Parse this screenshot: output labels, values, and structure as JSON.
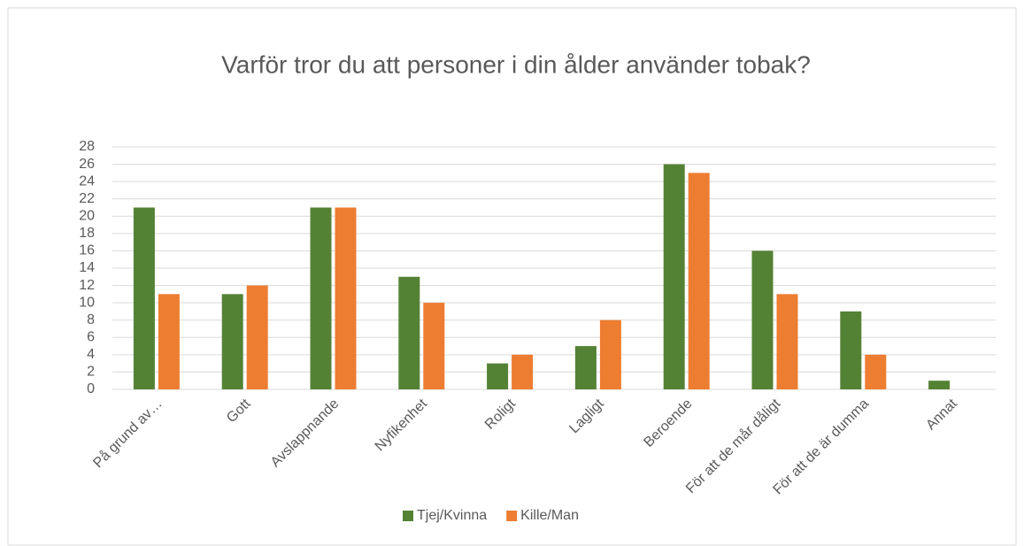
{
  "chart_data": {
    "type": "bar",
    "title": "Varför tror du att personer i din ålder använder tobak?",
    "categories": [
      "På grund av…",
      "Gott",
      "Avslappnande",
      "Nyfikenhet",
      "Roligt",
      "Lagligt",
      "Beroende",
      "För att de mår dåligt",
      "För att de är dumma",
      "Annat"
    ],
    "series": [
      {
        "name": "Tjej/Kvinna",
        "color": "#548235",
        "values": [
          21,
          11,
          21,
          13,
          3,
          5,
          26,
          16,
          9,
          1
        ]
      },
      {
        "name": "Kille/Man",
        "color": "#ed7d31",
        "values": [
          11,
          12,
          21,
          10,
          4,
          8,
          25,
          11,
          4,
          0
        ]
      }
    ],
    "ylim": [
      0,
      28
    ],
    "yticks": [
      0,
      2,
      4,
      6,
      8,
      10,
      12,
      14,
      16,
      18,
      20,
      22,
      24,
      26,
      28
    ],
    "grid": true,
    "legend": "bottom"
  }
}
